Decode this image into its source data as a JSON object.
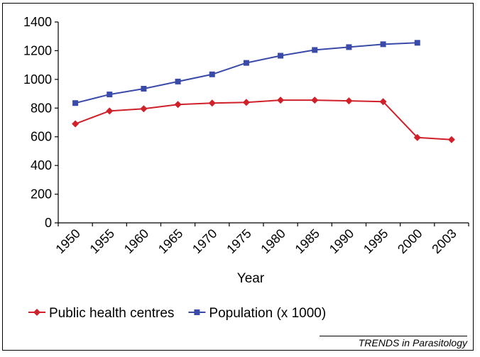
{
  "chart_data": {
    "type": "line",
    "categories": [
      "1950",
      "1955",
      "1960",
      "1965",
      "1970",
      "1975",
      "1980",
      "1985",
      "1990",
      "1995",
      "2000",
      "2003"
    ],
    "series": [
      {
        "name": "Public health centres",
        "color": "#d0202a",
        "marker": "diamond",
        "values": [
          690,
          780,
          795,
          825,
          835,
          840,
          855,
          855,
          850,
          845,
          595,
          580
        ]
      },
      {
        "name": "Population (x 1000)",
        "color": "#3a4aa8",
        "marker": "square",
        "values": [
          835,
          895,
          935,
          985,
          1035,
          1115,
          1165,
          1205,
          1225,
          1245,
          1255,
          null
        ]
      }
    ],
    "xlabel": "Year",
    "ylabel": "",
    "ylim": [
      0,
      1400
    ],
    "yticks": [
      0,
      200,
      400,
      600,
      800,
      1000,
      1200,
      1400
    ],
    "grid": false,
    "legend_position": "bottom"
  },
  "credit": "TRENDS in Parasitology"
}
